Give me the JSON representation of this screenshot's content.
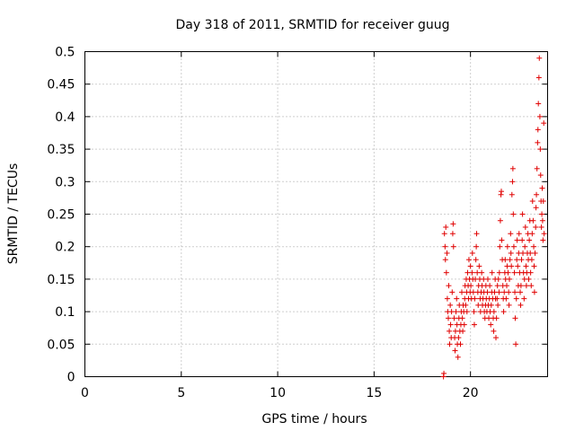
{
  "chart_data": {
    "type": "scatter",
    "title": "Day 318 of 2011, SRMTID for receiver guug",
    "xlabel": "GPS time / hours",
    "ylabel": "SRMTID / TECUs",
    "xlim": [
      0,
      24
    ],
    "ylim": [
      0,
      0.5
    ],
    "xticks": [
      0,
      5,
      10,
      15,
      20
    ],
    "yticks": [
      0,
      0.05,
      0.1,
      0.15,
      0.2,
      0.25,
      0.3,
      0.35,
      0.4,
      0.45,
      0.5
    ],
    "ytick_labels": [
      "0",
      "0.05",
      "0.1",
      "0.15",
      "0.2",
      "0.25",
      "0.3",
      "0.35",
      "0.4",
      "0.45",
      "0.5"
    ],
    "grid": true,
    "marker": "+",
    "color": "#e00000",
    "series": [
      {
        "points": [
          [
            18.6,
            0.0
          ],
          [
            18.62,
            0.005
          ],
          [
            18.65,
            0.22
          ],
          [
            18.68,
            0.2
          ],
          [
            18.7,
            0.18
          ],
          [
            18.72,
            0.23
          ],
          [
            18.75,
            0.16
          ],
          [
            18.78,
            0.19
          ],
          [
            18.8,
            0.12
          ],
          [
            18.82,
            0.1
          ],
          [
            18.85,
            0.09
          ],
          [
            18.87,
            0.14
          ],
          [
            18.9,
            0.07
          ],
          [
            18.92,
            0.05
          ],
          [
            18.95,
            0.11
          ],
          [
            18.97,
            0.08
          ],
          [
            19.0,
            0.06
          ],
          [
            19.02,
            0.1
          ],
          [
            19.05,
            0.13
          ],
          [
            19.08,
            0.22
          ],
          [
            19.1,
            0.235
          ],
          [
            19.12,
            0.2
          ],
          [
            19.15,
            0.09
          ],
          [
            19.18,
            0.06
          ],
          [
            19.2,
            0.04
          ],
          [
            19.22,
            0.07
          ],
          [
            19.25,
            0.1
          ],
          [
            19.28,
            0.12
          ],
          [
            19.3,
            0.08
          ],
          [
            19.32,
            0.05
          ],
          [
            19.35,
            0.03
          ],
          [
            19.38,
            0.06
          ],
          [
            19.4,
            0.09
          ],
          [
            19.42,
            0.11
          ],
          [
            19.45,
            0.07
          ],
          [
            19.48,
            0.05
          ],
          [
            19.5,
            0.08
          ],
          [
            19.52,
            0.1
          ],
          [
            19.55,
            0.13
          ],
          [
            19.58,
            0.09
          ],
          [
            19.6,
            0.07
          ],
          [
            19.62,
            0.11
          ],
          [
            19.65,
            0.1
          ],
          [
            19.68,
            0.08
          ],
          [
            19.7,
            0.12
          ],
          [
            19.72,
            0.14
          ],
          [
            19.75,
            0.11
          ],
          [
            19.78,
            0.15
          ],
          [
            19.8,
            0.13
          ],
          [
            19.82,
            0.1
          ],
          [
            19.85,
            0.16
          ],
          [
            19.88,
            0.14
          ],
          [
            19.9,
            0.12
          ],
          [
            19.92,
            0.18
          ],
          [
            19.95,
            0.15
          ],
          [
            19.98,
            0.13
          ],
          [
            20.0,
            0.17
          ],
          [
            20.02,
            0.14
          ],
          [
            20.05,
            0.12
          ],
          [
            20.08,
            0.16
          ],
          [
            20.1,
            0.19
          ],
          [
            20.12,
            0.15
          ],
          [
            20.15,
            0.13
          ],
          [
            20.18,
            0.1
          ],
          [
            20.2,
            0.08
          ],
          [
            20.22,
            0.12
          ],
          [
            20.25,
            0.15
          ],
          [
            20.28,
            0.18
          ],
          [
            20.3,
            0.2
          ],
          [
            20.32,
            0.22
          ],
          [
            20.35,
            0.16
          ],
          [
            20.38,
            0.13
          ],
          [
            20.4,
            0.11
          ],
          [
            20.42,
            0.14
          ],
          [
            20.45,
            0.17
          ],
          [
            20.48,
            0.15
          ],
          [
            20.5,
            0.12
          ],
          [
            20.52,
            0.1
          ],
          [
            20.55,
            0.13
          ],
          [
            20.58,
            0.16
          ],
          [
            20.6,
            0.14
          ],
          [
            20.62,
            0.11
          ],
          [
            20.65,
            0.12
          ],
          [
            20.68,
            0.15
          ],
          [
            20.7,
            0.13
          ],
          [
            20.72,
            0.1
          ],
          [
            20.75,
            0.09
          ],
          [
            20.78,
            0.11
          ],
          [
            20.8,
            0.14
          ],
          [
            20.82,
            0.12
          ],
          [
            20.85,
            0.1
          ],
          [
            20.88,
            0.13
          ],
          [
            20.9,
            0.15
          ],
          [
            20.92,
            0.11
          ],
          [
            20.95,
            0.09
          ],
          [
            20.98,
            0.12
          ],
          [
            21.0,
            0.14
          ],
          [
            21.02,
            0.1
          ],
          [
            21.05,
            0.08
          ],
          [
            21.08,
            0.11
          ],
          [
            21.1,
            0.13
          ],
          [
            21.12,
            0.16
          ],
          [
            21.15,
            0.12
          ],
          [
            21.18,
            0.09
          ],
          [
            21.2,
            0.07
          ],
          [
            21.22,
            0.1
          ],
          [
            21.25,
            0.13
          ],
          [
            21.28,
            0.15
          ],
          [
            21.3,
            0.12
          ],
          [
            21.32,
            0.06
          ],
          [
            21.35,
            0.09
          ],
          [
            21.38,
            0.12
          ],
          [
            21.4,
            0.14
          ],
          [
            21.42,
            0.11
          ],
          [
            21.45,
            0.15
          ],
          [
            21.48,
            0.13
          ],
          [
            21.5,
            0.16
          ],
          [
            21.52,
            0.2
          ],
          [
            21.55,
            0.24
          ],
          [
            21.58,
            0.28
          ],
          [
            21.6,
            0.285
          ],
          [
            21.62,
            0.21
          ],
          [
            21.65,
            0.18
          ],
          [
            21.68,
            0.14
          ],
          [
            21.7,
            0.12
          ],
          [
            21.72,
            0.1
          ],
          [
            21.75,
            0.13
          ],
          [
            21.78,
            0.16
          ],
          [
            21.8,
            0.18
          ],
          [
            21.82,
            0.15
          ],
          [
            21.85,
            0.12
          ],
          [
            21.88,
            0.14
          ],
          [
            21.9,
            0.17
          ],
          [
            21.92,
            0.2
          ],
          [
            21.95,
            0.16
          ],
          [
            21.98,
            0.13
          ],
          [
            22.0,
            0.11
          ],
          [
            22.02,
            0.15
          ],
          [
            22.05,
            0.18
          ],
          [
            22.08,
            0.22
          ],
          [
            22.1,
            0.19
          ],
          [
            22.12,
            0.17
          ],
          [
            22.15,
            0.28
          ],
          [
            22.18,
            0.3
          ],
          [
            22.2,
            0.32
          ],
          [
            22.22,
            0.25
          ],
          [
            22.25,
            0.2
          ],
          [
            22.28,
            0.16
          ],
          [
            22.3,
            0.13
          ],
          [
            22.32,
            0.09
          ],
          [
            22.35,
            0.05
          ],
          [
            22.38,
            0.12
          ],
          [
            22.4,
            0.18
          ],
          [
            22.42,
            0.21
          ],
          [
            22.45,
            0.17
          ],
          [
            22.48,
            0.14
          ],
          [
            22.5,
            0.19
          ],
          [
            22.52,
            0.22
          ],
          [
            22.55,
            0.16
          ],
          [
            22.58,
            0.13
          ],
          [
            22.6,
            0.11
          ],
          [
            22.62,
            0.14
          ],
          [
            22.65,
            0.18
          ],
          [
            22.68,
            0.21
          ],
          [
            22.7,
            0.25
          ],
          [
            22.72,
            0.19
          ],
          [
            22.75,
            0.16
          ],
          [
            22.78,
            0.12
          ],
          [
            22.8,
            0.15
          ],
          [
            22.82,
            0.2
          ],
          [
            22.85,
            0.23
          ],
          [
            22.88,
            0.17
          ],
          [
            22.9,
            0.14
          ],
          [
            22.92,
            0.16
          ],
          [
            22.95,
            0.19
          ],
          [
            22.98,
            0.22
          ],
          [
            23.0,
            0.18
          ],
          [
            23.02,
            0.15
          ],
          [
            23.05,
            0.21
          ],
          [
            23.08,
            0.24
          ],
          [
            23.1,
            0.19
          ],
          [
            23.12,
            0.16
          ],
          [
            23.15,
            0.14
          ],
          [
            23.18,
            0.18
          ],
          [
            23.2,
            0.22
          ],
          [
            23.22,
            0.27
          ],
          [
            23.25,
            0.24
          ],
          [
            23.28,
            0.2
          ],
          [
            23.3,
            0.17
          ],
          [
            23.32,
            0.13
          ],
          [
            23.35,
            0.19
          ],
          [
            23.38,
            0.23
          ],
          [
            23.4,
            0.26
          ],
          [
            23.42,
            0.28
          ],
          [
            23.45,
            0.32
          ],
          [
            23.48,
            0.36
          ],
          [
            23.5,
            0.38
          ],
          [
            23.52,
            0.42
          ],
          [
            23.55,
            0.46
          ],
          [
            23.57,
            0.49
          ],
          [
            23.6,
            0.4
          ],
          [
            23.62,
            0.35
          ],
          [
            23.64,
            0.31
          ],
          [
            23.66,
            0.27
          ],
          [
            23.68,
            0.23
          ],
          [
            23.7,
            0.25
          ],
          [
            23.72,
            0.29
          ],
          [
            23.74,
            0.24
          ],
          [
            23.76,
            0.21
          ],
          [
            23.78,
            0.27
          ],
          [
            23.8,
            0.39
          ],
          [
            23.82,
            0.22
          ]
        ]
      }
    ]
  }
}
